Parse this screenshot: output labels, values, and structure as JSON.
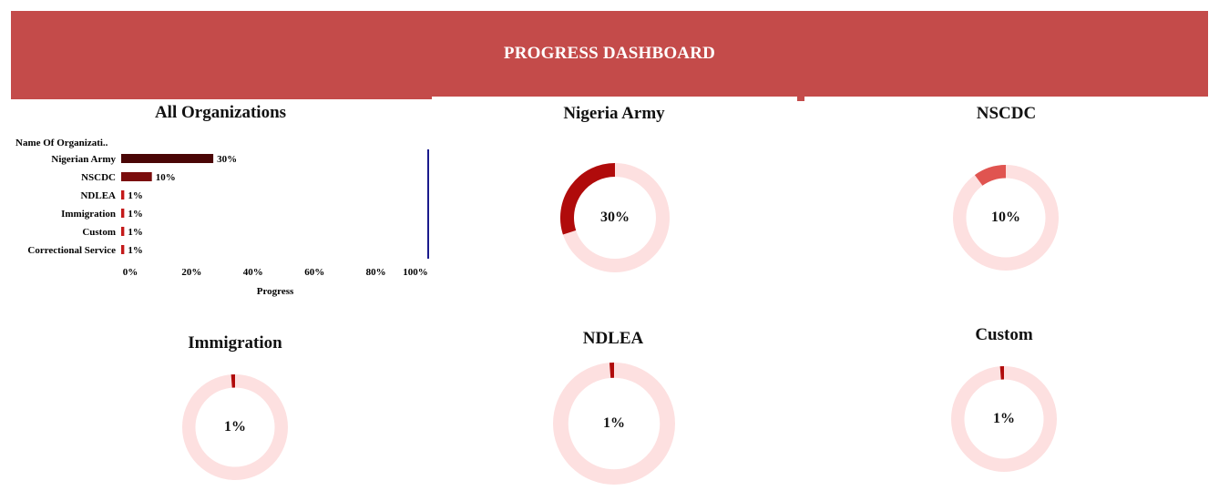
{
  "header": {
    "title": "PROGRESS DASHBOARD"
  },
  "colors": {
    "banner": "#c44b4a",
    "donut_track": "#fde0e0",
    "bar_army": "#4a0606",
    "bar_nscdc": "#7a0d0d",
    "bar_small": "#c41a1a",
    "axis_line": "#1a1a8c"
  },
  "chart_data": [
    {
      "type": "bar",
      "orientation": "horizontal",
      "title": "All Organizations",
      "ylabel": "Name Of Organizati..",
      "xlabel": "Progress",
      "categories": [
        "Nigerian Army",
        "NSCDC",
        "NDLEA",
        "Immigration",
        "Custom",
        "Correctional Service"
      ],
      "values": [
        30,
        10,
        1,
        1,
        1,
        1
      ],
      "value_labels": [
        "30%",
        "10%",
        "1%",
        "1%",
        "1%",
        "1%"
      ],
      "xlim": [
        0,
        100
      ],
      "xticks": [
        "0%",
        "20%",
        "40%",
        "60%",
        "80%",
        "100%"
      ],
      "grid": false,
      "legend": "none"
    },
    {
      "type": "pie",
      "subtype": "donut",
      "title": "Nigeria Army",
      "value": 30,
      "label": "30%",
      "color": "#b00b0b"
    },
    {
      "type": "pie",
      "subtype": "donut",
      "title": "NSCDC",
      "value": 10,
      "label": "10%",
      "color": "#e05450"
    },
    {
      "type": "pie",
      "subtype": "donut",
      "title": "Immigration",
      "value": 1,
      "label": "1%",
      "color": "#b00b0b"
    },
    {
      "type": "pie",
      "subtype": "donut",
      "title": "NDLEA",
      "value": 1,
      "label": "1%",
      "color": "#b00b0b"
    },
    {
      "type": "pie",
      "subtype": "donut",
      "title": "Custom",
      "value": 1,
      "label": "1%",
      "color": "#b00b0b"
    }
  ]
}
